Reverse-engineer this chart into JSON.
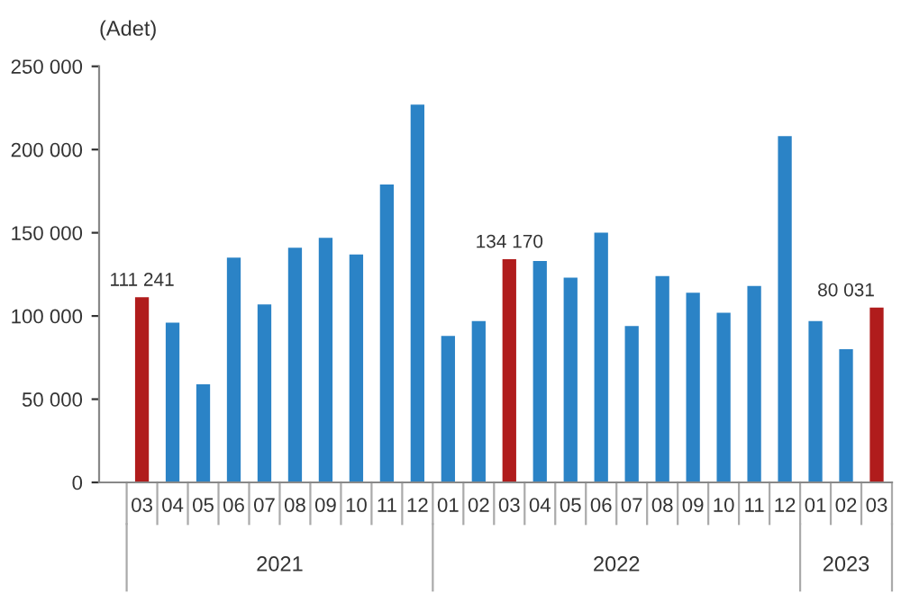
{
  "chart_data": {
    "type": "bar",
    "ylabel": "(Adet)",
    "categories": [
      "03",
      "04",
      "05",
      "06",
      "07",
      "08",
      "09",
      "10",
      "11",
      "12",
      "01",
      "02",
      "03",
      "04",
      "05",
      "06",
      "07",
      "08",
      "09",
      "10",
      "11",
      "12",
      "01",
      "02",
      "03"
    ],
    "values": [
      111241,
      96000,
      59000,
      135000,
      107000,
      141000,
      147000,
      137000,
      179000,
      227000,
      88000,
      97000,
      134170,
      133000,
      123000,
      150000,
      94000,
      124000,
      114000,
      102000,
      118000,
      208000,
      97000,
      80031,
      105000
    ],
    "colors": [
      "#b01c1c",
      "#2b83c6",
      "#2b83c6",
      "#2b83c6",
      "#2b83c6",
      "#2b83c6",
      "#2b83c6",
      "#2b83c6",
      "#2b83c6",
      "#2b83c6",
      "#2b83c6",
      "#2b83c6",
      "#b01c1c",
      "#2b83c6",
      "#2b83c6",
      "#2b83c6",
      "#2b83c6",
      "#2b83c6",
      "#2b83c6",
      "#2b83c6",
      "#2b83c6",
      "#2b83c6",
      "#2b83c6",
      "#2b83c6",
      "#b01c1c"
    ],
    "value_labels": [
      "111 241",
      null,
      null,
      null,
      null,
      null,
      null,
      null,
      null,
      null,
      null,
      null,
      "134 170",
      null,
      null,
      null,
      null,
      null,
      null,
      null,
      null,
      null,
      null,
      "80 031",
      null
    ],
    "annotations": [
      "2021",
      "2022",
      "2023"
    ],
    "ylim": [
      0,
      250000
    ],
    "yticks": [
      0,
      {
        "value": 50000,
        "label": "50 000"
      },
      {
        "value": 100000,
        "label": "100 000"
      },
      {
        "value": 150000,
        "label": "150 000"
      },
      {
        "value": 200000,
        "label": "200 000"
      },
      {
        "value": 250000,
        "label": "250 000"
      }
    ],
    "grid": false
  }
}
